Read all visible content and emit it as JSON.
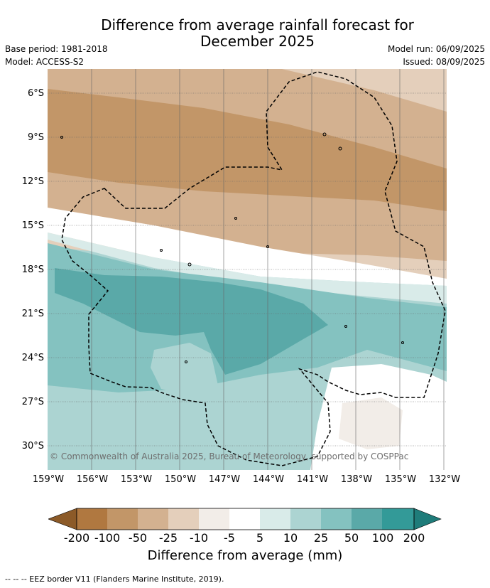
{
  "title_line1": "Difference from average rainfall forecast for",
  "title_line2": "December 2025",
  "meta_left": [
    "Base period: 1981-2018",
    "Model: ACCESS-S2"
  ],
  "meta_right": [
    "Model run: 06/09/2025",
    "Issued: 08/09/2025"
  ],
  "lat_labels": [
    "6°S",
    "9°S",
    "12°S",
    "15°S",
    "18°S",
    "21°S",
    "24°S",
    "27°S",
    "30°S"
  ],
  "lon_labels": [
    "159°W",
    "156°W",
    "153°W",
    "150°W",
    "147°W",
    "144°W",
    "141°W",
    "138°W",
    "135°W",
    "132°W"
  ],
  "copyright": "© Commonwealth of Australia 2025, Bureau of Meteorology, supported by COSPPac",
  "colorbar": {
    "ticks": [
      "-200",
      "-100",
      "-50",
      "-25",
      "-10",
      "-5",
      "5",
      "10",
      "25",
      "50",
      "100",
      "200"
    ],
    "colors": [
      "#8c5a28",
      "#b07840",
      "#c29668",
      "#d3b190",
      "#e4cfbb",
      "#f2ede8",
      "#ffffff",
      "#d9ebe9",
      "#acd4d2",
      "#84c2c0",
      "#5aa9a8",
      "#339a98",
      "#1f7c7a"
    ],
    "title": "Difference from average (mm)"
  },
  "footer": "--  --  -- EEZ border V11 (Flanders Marine Institute, 2019).",
  "map": {
    "lon_range": [
      "159°W",
      "132°W"
    ],
    "lat_range": [
      "5°S",
      "31.5°S"
    ]
  }
}
